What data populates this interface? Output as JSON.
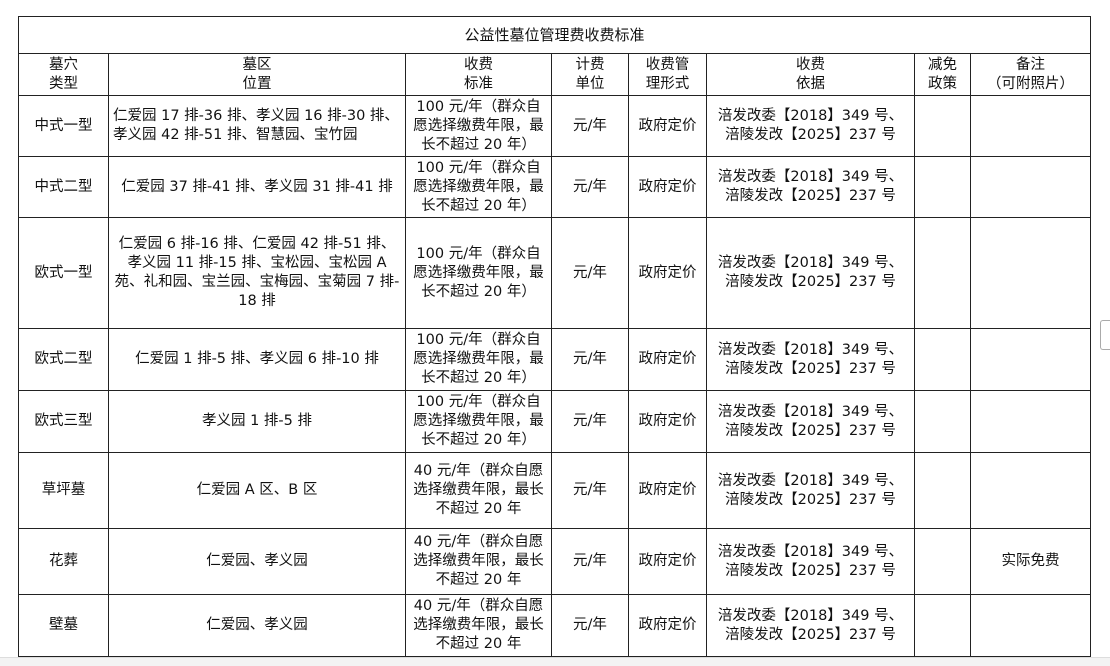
{
  "table": {
    "title": "公益性墓位管理费收费标准",
    "headers": [
      [
        "墓穴",
        "类型"
      ],
      [
        "墓区",
        "位置"
      ],
      [
        "收费",
        "标准"
      ],
      [
        "计费",
        "单位"
      ],
      [
        "收费管",
        "理形式"
      ],
      [
        "收费",
        "依据"
      ],
      [
        "减免",
        "政策"
      ],
      [
        "备注",
        "（可附照片）"
      ]
    ],
    "rows": [
      {
        "type": "中式一型",
        "location": "仁爱园 17 排-36 排、孝义园 16 排-30 排、孝义园 42 排-51 排、智慧园、宝竹园",
        "standard": "100 元/年（群众自愿选择缴费年限，最长不超过 20 年）",
        "unit": "元/年",
        "form": "政府定价",
        "basis": [
          "涪发改委【2018】349 号、",
          "涪陵发改【2025】237 号"
        ]
      },
      {
        "type": "中式二型",
        "location": "仁爱园 37 排-41 排、孝义园 31 排-41 排",
        "standard": "100 元/年（群众自愿选择缴费年限，最长不超过 20 年）",
        "unit": "元/年",
        "form": "政府定价",
        "basis": [
          "涪发改委【2018】349 号、",
          "涪陵发改【2025】237 号"
        ]
      },
      {
        "type": "欧式一型",
        "location": "仁爱园 6 排-16 排、仁爱园 42 排-51 排、孝义园 11 排-15 排、宝松园、宝松园 A 苑、礼和园、宝兰园、宝梅园、宝菊园 7 排-18 排",
        "standard": "100 元/年（群众自愿选择缴费年限，最长不超过 20 年）",
        "unit": "元/年",
        "form": "政府定价",
        "basis": [
          "涪发改委【2018】349 号、",
          "涪陵发改【2025】237 号"
        ]
      },
      {
        "type": "欧式二型",
        "location": "仁爱园 1 排-5 排、孝义园 6 排-10 排",
        "standard": "100 元/年（群众自愿选择缴费年限，最长不超过 20 年）",
        "unit": "元/年",
        "form": "政府定价",
        "basis": [
          "涪发改委【2018】349 号、",
          "涪陵发改【2025】237 号"
        ]
      },
      {
        "type": "欧式三型",
        "location": "孝义园 1 排-5 排",
        "standard": "100 元/年（群众自愿选择缴费年限，最长不超过 20 年）",
        "unit": "元/年",
        "form": "政府定价",
        "basis": [
          "涪发改委【2018】349 号、",
          "涪陵发改【2025】237 号"
        ]
      },
      {
        "type": "草坪墓",
        "location": "仁爱园 A 区、B 区",
        "standard": "40 元/年（群众自愿选择缴费年限，最长不超过 20 年",
        "unit": "元/年",
        "form": "政府定价",
        "basis": [
          "涪发改委【2018】349 号、",
          "涪陵发改【2025】237 号"
        ]
      },
      {
        "type": "花葬",
        "location": "仁爱园、孝义园",
        "standard": "40 元/年（群众自愿选择缴费年限，最长不超过 20 年",
        "unit": "元/年",
        "form": "政府定价",
        "basis": [
          "涪发改委【2018】349 号、",
          "涪陵发改【2025】237 号"
        ],
        "remark": "实际免费"
      },
      {
        "type": "壁墓",
        "location": "仁爱园、孝义园",
        "standard": "40 元/年（群众自愿选择缴费年限，最长不超过 20 年",
        "unit": "元/年",
        "form": "政府定价",
        "basis": [
          "涪发改委【2018】349 号、",
          "涪陵发改【2025】237 号"
        ]
      }
    ]
  }
}
